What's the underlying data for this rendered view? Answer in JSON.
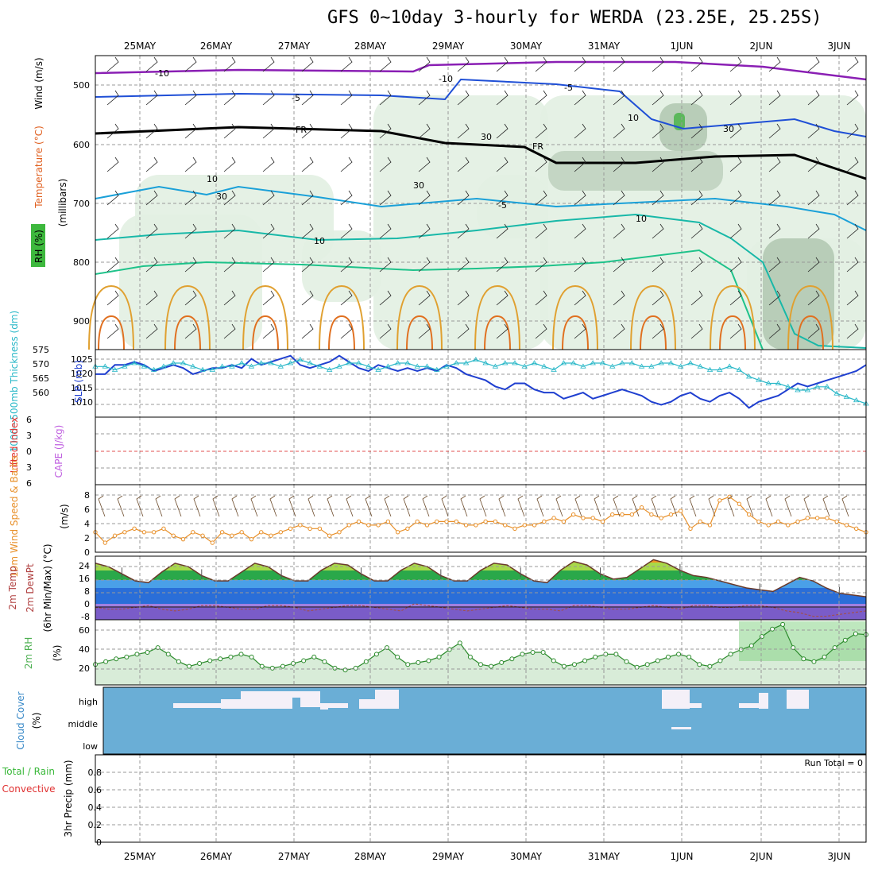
{
  "title": "GFS 0~10day 3-hourly for WERDA (23.25E, 25.25S)",
  "dates": [
    "25MAY",
    "26MAY",
    "27MAY",
    "28MAY",
    "29MAY",
    "30MAY",
    "31MAY",
    "1JUN",
    "2JUN",
    "3JUN"
  ],
  "run_total_label": "Run Total = 0",
  "colors": {
    "temp_purple": "#8a1fb4",
    "temp_blue": "#1f4fd6",
    "temp_cyan": "#1aa0d8",
    "temp_teal": "#18b8a8",
    "temp_green": "#1ec28a",
    "temp_orange": "#e0a030",
    "temp_dorange": "#e07020",
    "freeze": "#000000",
    "rh_fill": "#e2f0e2",
    "slp": "#1f3fd0",
    "thickness": "#2ab8c8",
    "wind10": "#e8902a",
    "cloud": "#6aaed6",
    "rh2m": "#4caf50"
  },
  "panels": {
    "upper": {
      "axis_label_wind": "Wind (m/s)",
      "axis_label_temp": "Temperature (°C)",
      "axis_label_rh": "RH (%)",
      "axis_label_mb": "(millibars)",
      "y_ticks": [
        "500",
        "600",
        "700",
        "800",
        "900"
      ],
      "contour_labels": [
        "-10",
        "-10",
        "-5",
        "-5",
        "FR",
        "FR",
        "-5",
        "10",
        "10",
        "30",
        "30",
        "30",
        "10",
        "10",
        "30"
      ]
    },
    "slp": {
      "axis_label_thick": "1000~500mb Thickness (dm)",
      "axis_label_slp": "SLP (mb)",
      "left_ticks": [
        "575",
        "570",
        "565",
        "560"
      ],
      "right_ticks": [
        "1025",
        "1020",
        "1015",
        "1010"
      ]
    },
    "li": {
      "axis_label_li": "Lifted Index",
      "axis_label_cape": "CAPE (J/kg)",
      "y_ticks": [
        "6",
        "3",
        "0",
        "3",
        "6"
      ]
    },
    "wind10": {
      "axis_label": "10m Wind Speed & Barbs",
      "axis_units": "(m/s)",
      "y_ticks": [
        "8",
        "6",
        "4",
        "2",
        "0"
      ]
    },
    "temp2m": {
      "axis_label": "2m Temp 2m DewPt (6hr Min/Max) (°C)",
      "y_ticks": [
        "24",
        "16",
        "8",
        "0",
        "-8"
      ]
    },
    "rh2m": {
      "axis_label": "2m RH",
      "axis_units": "(%)",
      "y_ticks": [
        "60",
        "40",
        "20"
      ]
    },
    "cloud": {
      "axis_label": "Cloud Cover",
      "axis_units": "(%)",
      "levels": [
        "high",
        "middle",
        "low"
      ]
    },
    "precip": {
      "axis_label_total": "Total / Rain",
      "axis_label_conv": "Convective",
      "axis_label": "3hr Precip (mm)",
      "y_ticks": [
        "0.8",
        "0.6",
        "0.4",
        "0.2",
        "0"
      ]
    }
  },
  "chart_data": [
    {
      "type": "line",
      "name": "SLP (mb)",
      "units": "mb",
      "ylim": [
        1005,
        1027
      ],
      "values": [
        1019,
        1019,
        1022,
        1022,
        1023,
        1022,
        1020,
        1021,
        1022,
        1021,
        1019,
        1020,
        1021,
        1021,
        1022,
        1021,
        1024,
        1022,
        1023,
        1024,
        1025,
        1022,
        1021,
        1022,
        1023,
        1025,
        1023,
        1021,
        1020,
        1022,
        1021,
        1020,
        1021,
        1020,
        1021,
        1020,
        1022,
        1021,
        1019,
        1018,
        1017,
        1015,
        1014,
        1016,
        1016,
        1014,
        1013,
        1013,
        1011,
        1012,
        1013,
        1011,
        1012,
        1013,
        1014,
        1013,
        1012,
        1010,
        1009,
        1010,
        1012,
        1013,
        1011,
        1010,
        1012,
        1013,
        1011,
        1008,
        1010,
        1011,
        1012,
        1014,
        1016,
        1015,
        1016,
        1017,
        1018,
        1019,
        1020,
        1022
      ]
    },
    {
      "type": "line",
      "name": "1000~500mb Thickness (dm)",
      "units": "dm",
      "ylim": [
        556,
        576
      ],
      "values": [
        571,
        571,
        570,
        571,
        572,
        571,
        570,
        571,
        572,
        572,
        571,
        570,
        570,
        571,
        571,
        572,
        571,
        572,
        572,
        571,
        572,
        573,
        572,
        571,
        570,
        571,
        572,
        572,
        571,
        570,
        571,
        572,
        572,
        571,
        571,
        570,
        571,
        572,
        572,
        573,
        572,
        571,
        572,
        572,
        571,
        572,
        571,
        570,
        572,
        572,
        571,
        572,
        572,
        571,
        572,
        572,
        571,
        571,
        572,
        572,
        571,
        572,
        571,
        570,
        570,
        571,
        570,
        568,
        567,
        566,
        566,
        565,
        564,
        564,
        565,
        565,
        563,
        562,
        561,
        560
      ]
    },
    {
      "type": "line",
      "name": "10m Wind Speed (m/s)",
      "units": "m/s",
      "ylim": [
        0,
        9
      ],
      "values": [
        2.5,
        1,
        2,
        2.5,
        3,
        2.5,
        2.5,
        3,
        2,
        1.5,
        2.5,
        2,
        1,
        2.5,
        2,
        2.5,
        1.5,
        2.5,
        2,
        2.5,
        3,
        3.5,
        3,
        3,
        2,
        2.5,
        3.5,
        4,
        3.5,
        3.5,
        4,
        2.5,
        3,
        4,
        3.5,
        4,
        4,
        4,
        3.5,
        3.5,
        4,
        4,
        3.5,
        3,
        3.5,
        3.5,
        4,
        4.5,
        4,
        5,
        4.5,
        4.5,
        4,
        5,
        5,
        5,
        6,
        5,
        4.5,
        5,
        5.5,
        3,
        4,
        3.5,
        7,
        7.5,
        6.5,
        5,
        4,
        3.5,
        4,
        3.5,
        4,
        4.5,
        4.5,
        4.5,
        4,
        3.5,
        3,
        2.5
      ]
    },
    {
      "type": "area",
      "name": "2m Temp (°C)",
      "units": "°C",
      "ylim": [
        -8,
        28
      ],
      "values": [
        24,
        22,
        18,
        14,
        13,
        19,
        24,
        22,
        17,
        14,
        14,
        19,
        24,
        22,
        17,
        14,
        14,
        20,
        24,
        23,
        18,
        14,
        14,
        20,
        24,
        22,
        17,
        14,
        14,
        20,
        24,
        23,
        18,
        14,
        13,
        20,
        25,
        23,
        18,
        15,
        16,
        21,
        26,
        24,
        20,
        17,
        16,
        14,
        12,
        10,
        9,
        8,
        12,
        16,
        14,
        10,
        7,
        6,
        5
      ]
    },
    {
      "type": "line",
      "name": "2m DewPt (°C)",
      "units": "°C",
      "ylim": [
        -8,
        28
      ],
      "values": [
        -1,
        -2,
        -2,
        -1,
        0,
        -2,
        -3,
        -2,
        0,
        0,
        -1,
        -2,
        -2,
        0,
        0,
        -1,
        -3,
        -2,
        -1,
        0,
        0,
        -1,
        -2,
        -3,
        1,
        0,
        -1,
        -2,
        -3,
        -2,
        -1,
        0,
        -1,
        -2,
        -2,
        -3,
        0,
        0,
        -1,
        -2,
        -2,
        -1,
        0,
        -1,
        -2,
        0,
        0,
        -1,
        -1,
        0,
        0,
        -1,
        -3,
        -4,
        -6,
        -6,
        -5,
        -4,
        -3
      ]
    },
    {
      "type": "area",
      "name": "2m RH (%)",
      "units": "%",
      "ylim": [
        0,
        70
      ],
      "values": [
        22,
        25,
        28,
        30,
        33,
        35,
        40,
        33,
        25,
        20,
        23,
        26,
        28,
        30,
        33,
        30,
        20,
        18,
        20,
        23,
        26,
        30,
        25,
        18,
        16,
        18,
        25,
        33,
        40,
        30,
        22,
        24,
        26,
        30,
        38,
        45,
        30,
        22,
        20,
        24,
        28,
        33,
        35,
        35,
        26,
        20,
        22,
        26,
        30,
        33,
        33,
        25,
        19,
        22,
        26,
        30,
        33,
        30,
        22,
        20,
        26,
        33,
        38,
        42,
        52,
        60,
        65,
        40,
        28,
        25,
        30,
        40,
        48,
        55,
        54
      ]
    },
    {
      "type": "table",
      "name": "Cloud Cover (%)",
      "levels": [
        "high",
        "middle",
        "low"
      ],
      "note": "mostly clear with scattered high cloud"
    },
    {
      "type": "bar",
      "name": "3hr Precip (mm)",
      "units": "mm",
      "ylim": [
        0,
        1
      ],
      "values": [
        0
      ],
      "run_total": 0
    }
  ]
}
